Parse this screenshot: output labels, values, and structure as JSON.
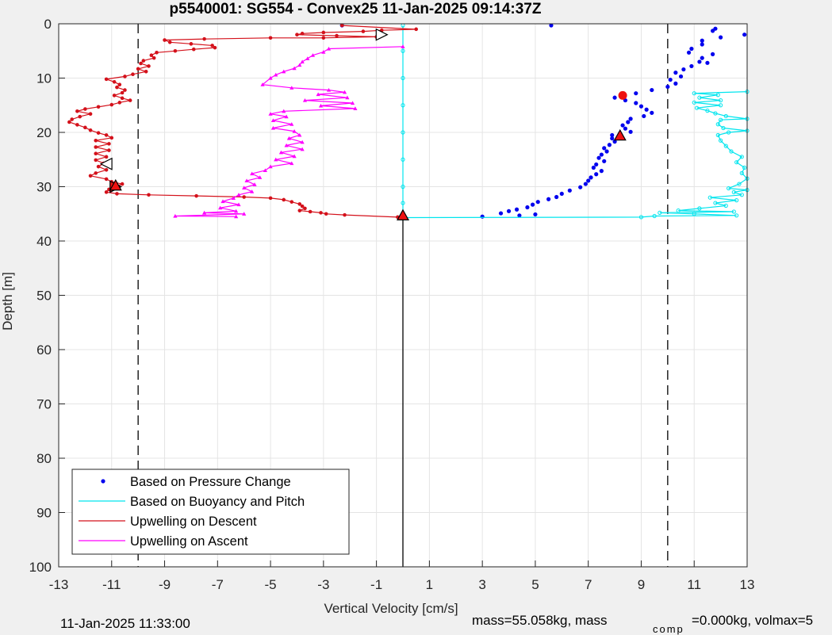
{
  "figure": {
    "footer_date": "11-Jan-2025 11:33:00",
    "footer_mass": "mass=55.058kg, mass",
    "footer_comp_sub": "comp",
    "footer_rest": "=0.000kg, volmax=5"
  },
  "colors": {
    "background": "#f0f0f0",
    "axes_bg": "#ffffff",
    "grid": "#e4e4e4",
    "pressure": "#0000ee",
    "buoyancy": "#00e5ee",
    "descent": "#d4111b",
    "ascent": "#ff00ff",
    "marker_red": "#ee1111"
  },
  "chart_data": {
    "type": "scatter",
    "title": "p5540001: SG554 - Convex25 11-Jan-2025 09:14:37Z",
    "xlabel": "Vertical Velocity [cm/s]",
    "ylabel": "Depth [m]",
    "xlim": [
      -13,
      13
    ],
    "ylim": [
      0,
      100
    ],
    "y_reversed": true,
    "grid": true,
    "legend_position": "bottom-left",
    "xticks": [
      -13,
      -11,
      -9,
      -7,
      -5,
      -3,
      -1,
      1,
      3,
      5,
      7,
      9,
      11,
      13
    ],
    "yticks": [
      0,
      10,
      20,
      30,
      40,
      50,
      60,
      70,
      80,
      90,
      100
    ],
    "xtick_labels": [
      "-13",
      "-11",
      "-9",
      "-7",
      "-5",
      "-3",
      "-1",
      "1",
      "3",
      "5",
      "7",
      "9",
      "11",
      "13"
    ],
    "ytick_labels": [
      "0",
      "10",
      "20",
      "30",
      "40",
      "50",
      "60",
      "70",
      "80",
      "90",
      "100"
    ],
    "reference_lines": [
      {
        "x": -10,
        "style": "dashed"
      },
      {
        "x": 10,
        "style": "dashed"
      },
      {
        "x": 0,
        "style": "solid",
        "y_from": 35.5,
        "y_to": 100
      }
    ],
    "series": [
      {
        "name": "Based on Pressure Change",
        "kind": "points",
        "points": [
          [
            5.6,
            0.3
          ],
          [
            -2.3,
            0.3
          ],
          [
            11.8,
            0.9
          ],
          [
            11.7,
            1.3
          ],
          [
            12.9,
            2.0
          ],
          [
            11.3,
            3.1
          ],
          [
            12.0,
            2.5
          ],
          [
            11.3,
            3.8
          ],
          [
            10.9,
            4.6
          ],
          [
            10.8,
            5.3
          ],
          [
            11.7,
            5.6
          ],
          [
            11.3,
            6.3
          ],
          [
            11.2,
            7.0
          ],
          [
            11.5,
            7.2
          ],
          [
            10.9,
            7.8
          ],
          [
            10.6,
            8.4
          ],
          [
            10.3,
            9.0
          ],
          [
            10.5,
            9.7
          ],
          [
            10.1,
            10.3
          ],
          [
            10.3,
            11.0
          ],
          [
            10.0,
            11.6
          ],
          [
            9.4,
            12.2
          ],
          [
            8.8,
            12.8
          ],
          [
            8.0,
            13.6
          ],
          [
            8.4,
            14.1
          ],
          [
            8.8,
            14.6
          ],
          [
            9.0,
            15.2
          ],
          [
            9.2,
            15.8
          ],
          [
            9.4,
            16.4
          ],
          [
            9.1,
            17.0
          ],
          [
            8.6,
            17.5
          ],
          [
            8.5,
            18.1
          ],
          [
            8.3,
            18.7
          ],
          [
            8.4,
            19.3
          ],
          [
            8.6,
            19.9
          ],
          [
            7.9,
            20.5
          ],
          [
            7.9,
            21.1
          ],
          [
            8.0,
            21.7
          ],
          [
            7.8,
            22.3
          ],
          [
            7.6,
            22.9
          ],
          [
            7.7,
            23.5
          ],
          [
            7.5,
            24.1
          ],
          [
            7.4,
            24.7
          ],
          [
            7.6,
            25.3
          ],
          [
            7.3,
            25.9
          ],
          [
            7.2,
            26.5
          ],
          [
            7.5,
            27.1
          ],
          [
            7.3,
            27.7
          ],
          [
            7.1,
            28.3
          ],
          [
            7.0,
            28.9
          ],
          [
            6.9,
            29.5
          ],
          [
            6.7,
            30.1
          ],
          [
            6.3,
            30.7
          ],
          [
            6.0,
            31.3
          ],
          [
            5.8,
            31.9
          ],
          [
            5.5,
            32.3
          ],
          [
            5.1,
            32.8
          ],
          [
            4.9,
            33.3
          ],
          [
            4.7,
            33.8
          ],
          [
            4.3,
            34.2
          ],
          [
            4.0,
            34.5
          ],
          [
            3.7,
            34.9
          ],
          [
            3.0,
            35.5
          ],
          [
            4.4,
            35.3
          ],
          [
            5.0,
            35.1
          ]
        ]
      },
      {
        "name": "Based on Buoyancy and Pitch",
        "kind": "line_markers",
        "points": [
          [
            0,
            0.3
          ],
          [
            0,
            5
          ],
          [
            0,
            10
          ],
          [
            0,
            15
          ],
          [
            0,
            20
          ],
          [
            0,
            25
          ],
          [
            0,
            30
          ],
          [
            0,
            33
          ],
          [
            0,
            35
          ],
          [
            0,
            35.7
          ],
          [
            9.0,
            35.6
          ],
          [
            9.5,
            35.4
          ],
          [
            12.6,
            35.3
          ],
          [
            11.0,
            35.0
          ],
          [
            9.7,
            34.8
          ],
          [
            12.5,
            34.6
          ],
          [
            10.4,
            34.4
          ],
          [
            11.2,
            34.0
          ],
          [
            12.2,
            33.5
          ],
          [
            11.8,
            33.0
          ],
          [
            12.6,
            32.5
          ],
          [
            11.6,
            32.0
          ],
          [
            12.8,
            31.5
          ],
          [
            12.5,
            31.0
          ],
          [
            13.0,
            30.6
          ],
          [
            12.3,
            30.3
          ],
          [
            12.7,
            29.5
          ],
          [
            13.0,
            28.5
          ],
          [
            12.8,
            27.5
          ],
          [
            12.9,
            26.5
          ],
          [
            12.6,
            25.5
          ],
          [
            12.8,
            24.5
          ],
          [
            12.4,
            23.5
          ],
          [
            12.2,
            22.5
          ],
          [
            12.0,
            21.5
          ],
          [
            11.9,
            20.5
          ],
          [
            12.3,
            20.0
          ],
          [
            13.0,
            19.7
          ],
          [
            12.1,
            19.2
          ],
          [
            11.9,
            18.5
          ],
          [
            12.0,
            17.7
          ],
          [
            13.0,
            17.5
          ],
          [
            12.2,
            17.0
          ],
          [
            11.8,
            16.5
          ],
          [
            11.5,
            16.0
          ],
          [
            11.1,
            15.5
          ],
          [
            12.0,
            15.0
          ],
          [
            11.0,
            14.5
          ],
          [
            12.0,
            14.1
          ],
          [
            11.2,
            13.6
          ],
          [
            11.9,
            13.1
          ],
          [
            11.0,
            12.8
          ],
          [
            13.0,
            12.5
          ]
        ]
      },
      {
        "name": "Upwelling on Descent",
        "kind": "line_markers",
        "points": [
          [
            -2.3,
            0.3
          ],
          [
            0.5,
            1.0
          ],
          [
            -0.8,
            1.2
          ],
          [
            -1.5,
            1.4
          ],
          [
            -3.0,
            1.6
          ],
          [
            -3.8,
            1.8
          ],
          [
            -4.0,
            2.0
          ],
          [
            -2.5,
            2.2
          ],
          [
            -1.0,
            2.4
          ],
          [
            -3.0,
            2.6
          ],
          [
            -5.0,
            2.6
          ],
          [
            -7.5,
            2.8
          ],
          [
            -9.0,
            3.0
          ],
          [
            -8.8,
            3.4
          ],
          [
            -8.0,
            3.7
          ],
          [
            -7.2,
            4.0
          ],
          [
            -7.1,
            4.4
          ],
          [
            -7.9,
            4.7
          ],
          [
            -8.6,
            5.0
          ],
          [
            -9.3,
            5.3
          ],
          [
            -9.5,
            5.8
          ],
          [
            -9.4,
            6.3
          ],
          [
            -9.8,
            6.8
          ],
          [
            -9.9,
            7.3
          ],
          [
            -9.6,
            7.8
          ],
          [
            -10.0,
            8.3
          ],
          [
            -9.7,
            8.8
          ],
          [
            -10.2,
            9.3
          ],
          [
            -10.5,
            9.7
          ],
          [
            -11.2,
            10.2
          ],
          [
            -10.9,
            10.7
          ],
          [
            -10.7,
            11.2
          ],
          [
            -10.8,
            11.7
          ],
          [
            -10.5,
            12.2
          ],
          [
            -10.6,
            12.7
          ],
          [
            -10.9,
            13.2
          ],
          [
            -10.6,
            13.7
          ],
          [
            -10.3,
            14.1
          ],
          [
            -10.7,
            14.5
          ],
          [
            -11.0,
            14.9
          ],
          [
            -11.5,
            15.3
          ],
          [
            -12.0,
            15.7
          ],
          [
            -12.3,
            16.1
          ],
          [
            -11.8,
            16.6
          ],
          [
            -12.2,
            17.1
          ],
          [
            -12.5,
            17.6
          ],
          [
            -12.6,
            18.1
          ],
          [
            -12.3,
            18.6
          ],
          [
            -12.0,
            19.1
          ],
          [
            -11.8,
            19.6
          ],
          [
            -11.5,
            20.1
          ],
          [
            -11.2,
            20.5
          ],
          [
            -11.0,
            21.0
          ],
          [
            -11.6,
            21.5
          ],
          [
            -11.1,
            22.1
          ],
          [
            -11.6,
            22.7
          ],
          [
            -11.1,
            23.3
          ],
          [
            -11.6,
            23.9
          ],
          [
            -11.2,
            24.5
          ],
          [
            -11.6,
            25.1
          ],
          [
            -11.3,
            25.7
          ],
          [
            -11.5,
            26.3
          ],
          [
            -11.2,
            26.9
          ],
          [
            -11.6,
            27.5
          ],
          [
            -11.8,
            28.0
          ],
          [
            -11.2,
            28.6
          ],
          [
            -11.0,
            29.1
          ],
          [
            -10.6,
            29.5
          ],
          [
            -10.9,
            30.0
          ],
          [
            -11.1,
            30.5
          ],
          [
            -11.2,
            31.0
          ],
          [
            -10.8,
            31.3
          ],
          [
            -9.6,
            31.5
          ],
          [
            -7.8,
            31.7
          ],
          [
            -6.0,
            31.9
          ],
          [
            -5.0,
            32.1
          ],
          [
            -4.5,
            32.4
          ],
          [
            -4.2,
            32.8
          ],
          [
            -3.9,
            33.2
          ],
          [
            -3.8,
            33.6
          ],
          [
            -3.7,
            34.0
          ],
          [
            -3.9,
            34.4
          ],
          [
            -3.5,
            34.6
          ],
          [
            -3.1,
            34.8
          ],
          [
            -2.9,
            35.0
          ],
          [
            -2.2,
            35.2
          ],
          [
            -0.2,
            35.6
          ]
        ]
      },
      {
        "name": "Upwelling on Ascent",
        "kind": "line_markers",
        "points": [
          [
            0,
            4.2
          ],
          [
            -2.8,
            4.6
          ],
          [
            -3.0,
            5.2
          ],
          [
            -3.4,
            5.8
          ],
          [
            -3.6,
            6.4
          ],
          [
            -3.8,
            7.0
          ],
          [
            -3.9,
            7.6
          ],
          [
            -4.1,
            8.2
          ],
          [
            -4.5,
            8.8
          ],
          [
            -4.8,
            9.4
          ],
          [
            -5.0,
            10.0
          ],
          [
            -5.3,
            11.2
          ],
          [
            -4.2,
            11.8
          ],
          [
            -2.8,
            12.2
          ],
          [
            -2.2,
            12.6
          ],
          [
            -3.2,
            13.0
          ],
          [
            -2.1,
            13.6
          ],
          [
            -3.7,
            14.1
          ],
          [
            -1.9,
            14.6
          ],
          [
            -3.1,
            15.1
          ],
          [
            -1.8,
            15.6
          ],
          [
            -4.5,
            16.1
          ],
          [
            -5.0,
            16.6
          ],
          [
            -4.4,
            17.1
          ],
          [
            -4.9,
            17.8
          ],
          [
            -4.2,
            18.5
          ],
          [
            -4.9,
            19.2
          ],
          [
            -4.1,
            19.8
          ],
          [
            -3.9,
            20.5
          ],
          [
            -4.3,
            21.1
          ],
          [
            -3.8,
            21.8
          ],
          [
            -4.4,
            22.4
          ],
          [
            -3.8,
            23.1
          ],
          [
            -4.6,
            23.7
          ],
          [
            -4.1,
            24.4
          ],
          [
            -4.8,
            25.0
          ],
          [
            -4.2,
            25.7
          ],
          [
            -5.0,
            26.3
          ],
          [
            -5.2,
            27.0
          ],
          [
            -5.7,
            27.6
          ],
          [
            -5.4,
            28.3
          ],
          [
            -5.9,
            28.9
          ],
          [
            -5.6,
            29.6
          ],
          [
            -6.0,
            30.2
          ],
          [
            -5.7,
            30.9
          ],
          [
            -6.2,
            31.5
          ],
          [
            -6.4,
            32.1
          ],
          [
            -6.8,
            32.7
          ],
          [
            -6.2,
            33.3
          ],
          [
            -6.9,
            33.9
          ],
          [
            -6.3,
            34.5
          ],
          [
            -7.5,
            34.8
          ],
          [
            -6.0,
            35.0
          ],
          [
            -8.6,
            35.4
          ],
          [
            -6.3,
            35.5
          ]
        ]
      }
    ],
    "direction_markers": [
      {
        "x": -0.8,
        "y": 2.0,
        "shape": "triangle-right",
        "fill": "white"
      },
      {
        "x": -11.2,
        "y": 25.8,
        "shape": "triangle-left",
        "fill": "white"
      },
      {
        "x": -10.85,
        "y": 30.0,
        "shape": "triangle-right",
        "fill": "red"
      },
      {
        "x": -10.85,
        "y": 29.8,
        "shape": "triangle-up",
        "fill": "red"
      },
      {
        "x": 8.2,
        "y": 20.6,
        "shape": "triangle-up",
        "fill": "red"
      },
      {
        "x": 0,
        "y": 35.3,
        "shape": "triangle-up",
        "fill": "red"
      },
      {
        "x": 8.3,
        "y": 13.2,
        "shape": "circle",
        "fill": "red"
      }
    ],
    "legend": [
      {
        "label": "Based on Pressure Change",
        "marker": "dot"
      },
      {
        "label": "Based on Buoyancy and Pitch",
        "marker": "line"
      },
      {
        "label": "Upwelling on Descent",
        "marker": "line"
      },
      {
        "label": "Upwelling on Ascent",
        "marker": "line"
      }
    ]
  }
}
